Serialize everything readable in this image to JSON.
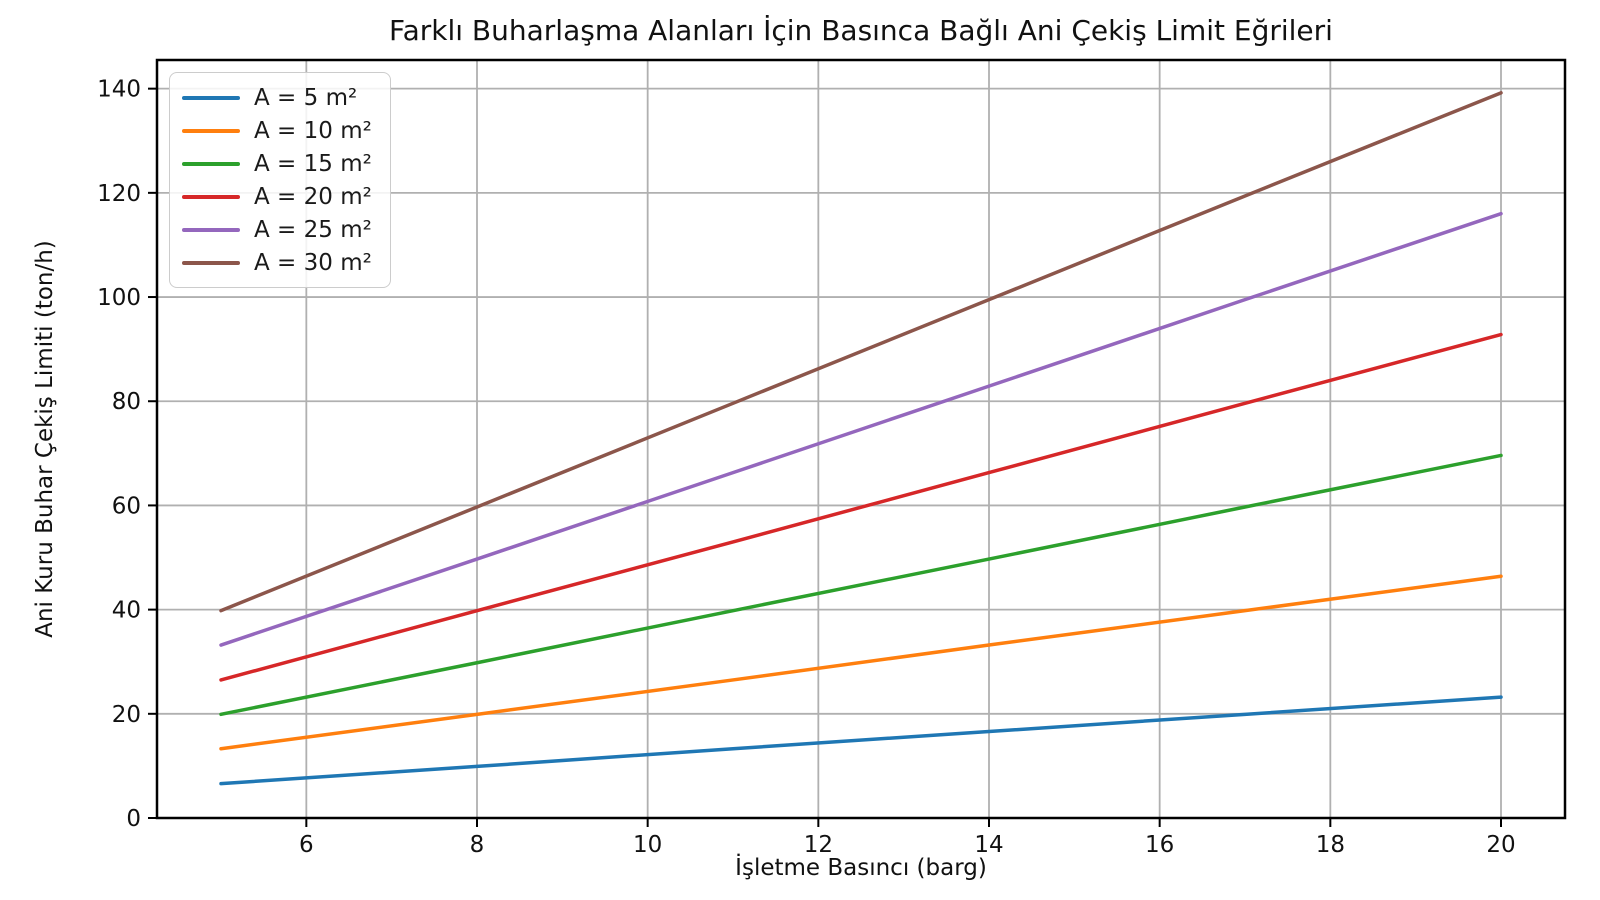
{
  "chart_data": {
    "type": "line",
    "title": "Farklı Buharlaşma Alanları İçin Basınca Bağlı Ani Çekiş Limit Eğrileri",
    "xlabel": "İşletme Basıncı (barg)",
    "ylabel": "Ani Kuru Buhar Çekiş Limiti (ton/h)",
    "x": [
      5,
      8,
      11,
      14,
      17,
      20
    ],
    "series": [
      {
        "name": "A = 5 m²",
        "color": "#1f77b4",
        "values": [
          6.6,
          9.9,
          13.3,
          16.6,
          19.9,
          23.2
        ]
      },
      {
        "name": "A = 10 m²",
        "color": "#ff7f0e",
        "values": [
          13.3,
          19.9,
          26.5,
          33.2,
          39.8,
          46.4
        ]
      },
      {
        "name": "A = 15 m²",
        "color": "#2ca02c",
        "values": [
          19.9,
          29.8,
          39.8,
          49.7,
          59.7,
          69.6
        ]
      },
      {
        "name": "A = 20 m²",
        "color": "#d62728",
        "values": [
          26.5,
          39.8,
          53.0,
          66.3,
          79.6,
          92.8
        ]
      },
      {
        "name": "A = 25 m²",
        "color": "#9467bd",
        "values": [
          33.2,
          49.7,
          66.3,
          82.9,
          99.5,
          116.0
        ]
      },
      {
        "name": "A = 30 m²",
        "color": "#8c564b",
        "values": [
          39.8,
          59.7,
          79.6,
          99.5,
          119.4,
          139.2
        ]
      }
    ],
    "xlim": [
      4.25,
      20.75
    ],
    "ylim": [
      0,
      145.5
    ],
    "xticks": [
      6,
      8,
      10,
      12,
      14,
      16,
      18,
      20
    ],
    "yticks": [
      0,
      20,
      40,
      60,
      80,
      100,
      120,
      140
    ],
    "grid": true,
    "legend_position": "upper left",
    "styles": {
      "grid_color": "#b0b0b0",
      "spine_color": "#000000",
      "text_color": "#111111",
      "background": "#ffffff"
    }
  }
}
